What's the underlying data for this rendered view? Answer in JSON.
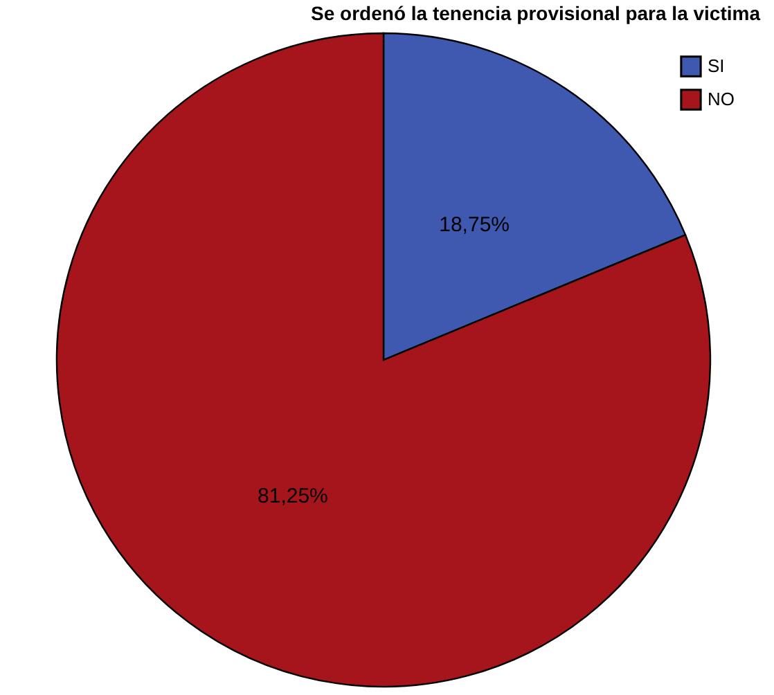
{
  "chart_data": {
    "type": "pie",
    "title": "Se ordenó la tenencia provisional para la victima",
    "categories": [
      "SI",
      "NO"
    ],
    "values": [
      18.75,
      81.25
    ],
    "colors": [
      "#3f58b0",
      "#a5151b"
    ],
    "value_labels": [
      "18,75%",
      "81,25%"
    ],
    "legend": "top right"
  }
}
